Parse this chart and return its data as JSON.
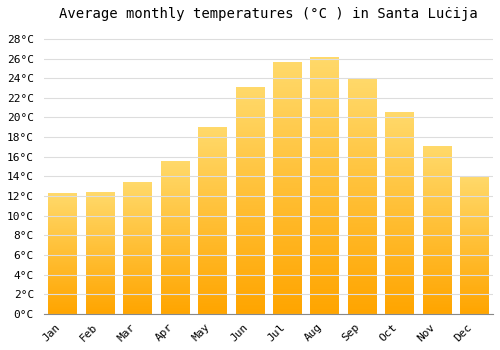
{
  "title": "Average monthly temperatures (°C ) in Santa Luċija",
  "months": [
    "Jan",
    "Feb",
    "Mar",
    "Apr",
    "May",
    "Jun",
    "Jul",
    "Aug",
    "Sep",
    "Oct",
    "Nov",
    "Dec"
  ],
  "temperatures": [
    12.3,
    12.4,
    13.4,
    15.5,
    19.0,
    23.0,
    25.6,
    26.1,
    24.0,
    20.5,
    17.0,
    14.0
  ],
  "bar_color_top": "#FFD966",
  "bar_color_bottom": "#FFA500",
  "background_color": "#FFFFFF",
  "grid_color": "#DDDDDD",
  "ylim": [
    0,
    29
  ],
  "ytick_step": 2,
  "title_fontsize": 10,
  "tick_fontsize": 8,
  "font_family": "monospace"
}
